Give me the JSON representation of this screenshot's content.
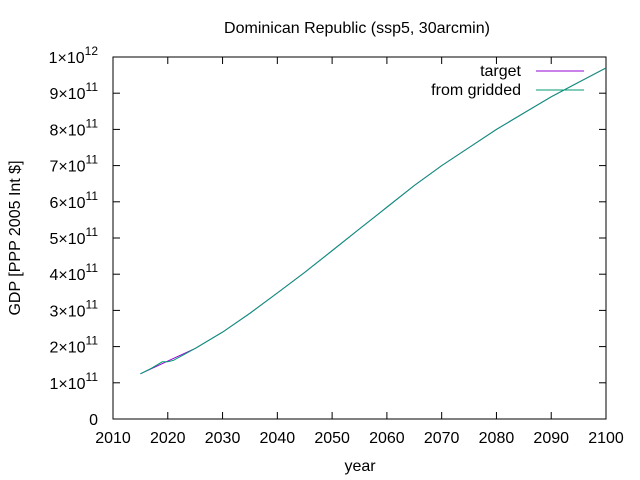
{
  "chart_data": {
    "type": "line",
    "title": "Dominican Republic (ssp5, 30arcmin)",
    "xlabel": "year",
    "ylabel": "GDP [PPP 2005 Int $]",
    "xlim": [
      2010,
      2100
    ],
    "ylim": [
      0,
      1000000000000
    ],
    "xticks": [
      2010,
      2020,
      2030,
      2040,
      2050,
      2060,
      2070,
      2080,
      2090,
      2100
    ],
    "yticks": [
      {
        "value": 0,
        "mantissa": "0",
        "exp": ""
      },
      {
        "value": 100000000000,
        "mantissa": "1×10",
        "exp": "11"
      },
      {
        "value": 200000000000,
        "mantissa": "2×10",
        "exp": "11"
      },
      {
        "value": 300000000000,
        "mantissa": "3×10",
        "exp": "11"
      },
      {
        "value": 400000000000,
        "mantissa": "4×10",
        "exp": "11"
      },
      {
        "value": 500000000000,
        "mantissa": "5×10",
        "exp": "11"
      },
      {
        "value": 600000000000,
        "mantissa": "6×10",
        "exp": "11"
      },
      {
        "value": 700000000000,
        "mantissa": "7×10",
        "exp": "11"
      },
      {
        "value": 800000000000,
        "mantissa": "8×10",
        "exp": "11"
      },
      {
        "value": 900000000000,
        "mantissa": "9×10",
        "exp": "11"
      },
      {
        "value": 1000000000000,
        "mantissa": "1×10",
        "exp": "12"
      }
    ],
    "grid": false,
    "legend_position": "top-right",
    "series": [
      {
        "name": "target",
        "color": "#9400d3",
        "x": [
          2015,
          2020,
          2025,
          2030,
          2035,
          2040,
          2045,
          2050,
          2055,
          2060,
          2065,
          2070,
          2075,
          2080,
          2085,
          2090,
          2095,
          2100
        ],
        "y": [
          125000000000,
          160000000000,
          195000000000,
          240000000000,
          292000000000,
          348000000000,
          405000000000,
          465000000000,
          525000000000,
          585000000000,
          645000000000,
          700000000000,
          750000000000,
          800000000000,
          845000000000,
          890000000000,
          930000000000,
          970000000000
        ]
      },
      {
        "name": "from gridded",
        "color": "#009e73",
        "x": [
          2015,
          2017,
          2019,
          2020,
          2021,
          2025,
          2030,
          2035,
          2040,
          2045,
          2050,
          2055,
          2060,
          2065,
          2070,
          2075,
          2080,
          2085,
          2090,
          2095,
          2100
        ],
        "y": [
          125000000000,
          140000000000,
          158000000000,
          158000000000,
          162000000000,
          195000000000,
          240000000000,
          292000000000,
          348000000000,
          405000000000,
          465000000000,
          525000000000,
          585000000000,
          645000000000,
          700000000000,
          750000000000,
          800000000000,
          845000000000,
          890000000000,
          930000000000,
          970000000000
        ]
      }
    ]
  }
}
